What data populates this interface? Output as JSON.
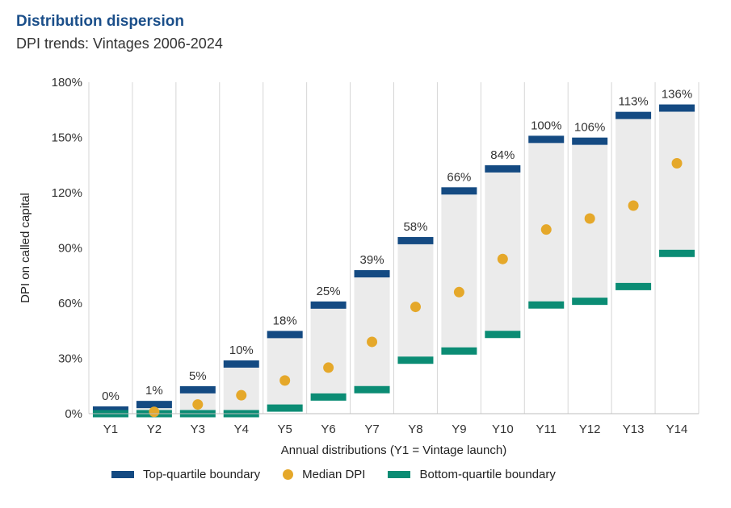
{
  "header": {
    "title": "Distribution dispersion",
    "subtitle": "DPI trends: Vintages 2006-2024"
  },
  "colors": {
    "top": "#144a82",
    "median": "#e5a82a",
    "bottom": "#0b8c74",
    "range": "#ebebeb",
    "grid": "#d6d6d6",
    "title": "#1b4f8a"
  },
  "legend": {
    "top_label": "Top-quartile boundary",
    "median_label": "Median DPI",
    "bottom_label": "Bottom-quartile boundary"
  },
  "chart_data": {
    "type": "bar",
    "xlabel": "Annual distributions (Y1 = Vintage launch)",
    "ylabel": "DPI on called capital",
    "ylim": [
      0,
      180
    ],
    "yticks": [
      0,
      30,
      60,
      90,
      120,
      150,
      180
    ],
    "ytick_labels": [
      "0%",
      "30%",
      "60%",
      "90%",
      "120%",
      "150%",
      "180%"
    ],
    "grid": "vertical",
    "legend_position": "bottom",
    "categories": [
      "Y1",
      "Y2",
      "Y3",
      "Y4",
      "Y5",
      "Y6",
      "Y7",
      "Y8",
      "Y9",
      "Y10",
      "Y11",
      "Y12",
      "Y13",
      "Y14"
    ],
    "series": [
      {
        "name": "Top-quartile boundary",
        "values": [
          0,
          3,
          11,
          25,
          41,
          57,
          74,
          92,
          119,
          131,
          147,
          146,
          160,
          164
        ]
      },
      {
        "name": "Median DPI",
        "values": [
          0,
          1,
          5,
          10,
          18,
          25,
          39,
          58,
          66,
          84,
          100,
          106,
          113,
          136
        ]
      },
      {
        "name": "Bottom-quartile boundary",
        "values": [
          0,
          0,
          0,
          0,
          5,
          11,
          15,
          31,
          36,
          45,
          61,
          63,
          71,
          89
        ]
      }
    ],
    "data_labels": [
      "0%",
      "1%",
      "5%",
      "10%",
      "18%",
      "25%",
      "39%",
      "58%",
      "66%",
      "84%",
      "100%",
      "106%",
      "113%",
      "136%"
    ]
  }
}
